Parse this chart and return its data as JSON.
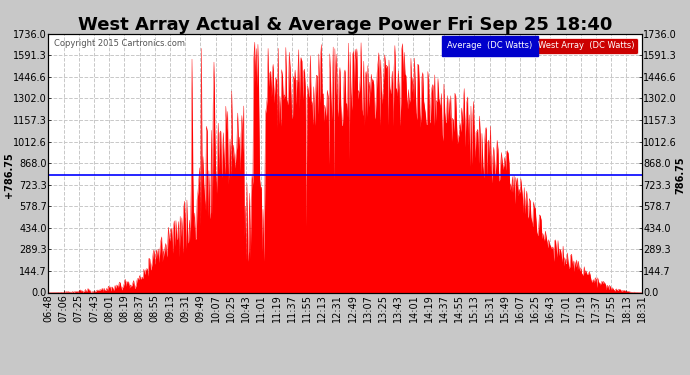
{
  "title": "West Array Actual & Average Power Fri Sep 25 18:40",
  "copyright": "Copyright 2015 Cartronics.com",
  "average_value": 786.75,
  "y_max": 1736.0,
  "y_min": 0.0,
  "y_ticks": [
    0.0,
    144.7,
    289.3,
    434.0,
    578.7,
    723.3,
    868.0,
    1012.6,
    1157.3,
    1302.0,
    1446.6,
    1591.3,
    1736.0
  ],
  "x_labels": [
    "06:48",
    "07:06",
    "07:25",
    "07:43",
    "08:01",
    "08:19",
    "08:37",
    "08:55",
    "09:13",
    "09:31",
    "09:49",
    "10:07",
    "10:25",
    "10:43",
    "11:01",
    "11:19",
    "11:37",
    "11:55",
    "12:13",
    "12:31",
    "12:49",
    "13:07",
    "13:25",
    "13:43",
    "14:01",
    "14:19",
    "14:37",
    "14:55",
    "15:13",
    "15:31",
    "15:49",
    "16:07",
    "16:25",
    "16:43",
    "17:01",
    "17:19",
    "17:37",
    "17:55",
    "18:13",
    "18:31"
  ],
  "bg_color": "#c8c8c8",
  "plot_bg_color": "#ffffff",
  "fill_color": "#ff0000",
  "avg_line_color": "#0000ff",
  "title_color": "#000000",
  "legend_avg_bg": "#0000cc",
  "legend_west_bg": "#cc0000",
  "grid_color": "#c8c8c8",
  "title_fontsize": 13,
  "label_fontsize": 7,
  "avg_label_fontsize": 7
}
